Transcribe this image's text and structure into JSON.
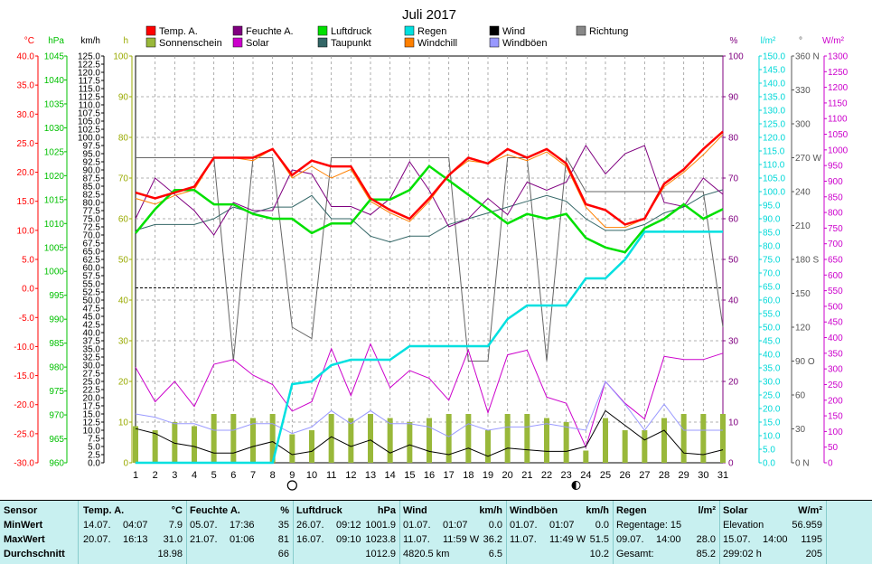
{
  "chart_data": {
    "type": "line",
    "title": "Juli 2017",
    "x": [
      1,
      2,
      3,
      4,
      5,
      6,
      7,
      8,
      9,
      10,
      11,
      12,
      13,
      14,
      15,
      16,
      17,
      18,
      19,
      20,
      21,
      22,
      23,
      24,
      25,
      26,
      27,
      28,
      29,
      30,
      31
    ],
    "x_ticks": [
      "1",
      "2",
      "3",
      "4",
      "5",
      "6",
      "7",
      "8",
      "9",
      "10",
      "11",
      "12",
      "13",
      "14",
      "15",
      "16",
      "17",
      "18",
      "19",
      "20",
      "21",
      "22",
      "23",
      "24",
      "25",
      "26",
      "27",
      "28",
      "29",
      "30",
      "31"
    ],
    "axes": {
      "temp": {
        "unit": "°C",
        "min": -30,
        "max": 40,
        "step": 5,
        "color": "#ff0000"
      },
      "hpa": {
        "unit": "hPa",
        "min": 960,
        "max": 1045,
        "step": 5,
        "color": "#00c000"
      },
      "kmh": {
        "unit": "km/h",
        "min": 0,
        "max": 125,
        "step": 2.5,
        "color": "#000000"
      },
      "hours": {
        "unit": "h",
        "min": 0,
        "max": 100,
        "step": 10,
        "color": "#99aa00"
      },
      "pct": {
        "unit": "%",
        "min": 0,
        "max": 100,
        "step": 10,
        "color": "#800080"
      },
      "rain": {
        "unit": "l/m²",
        "min": 0,
        "max": 150,
        "step": 5,
        "color": "#00d8d8"
      },
      "dir": {
        "unit": "°",
        "min": 0,
        "max": 360,
        "step": 30,
        "color": "#555555",
        "tick_labels": [
          "0 N",
          "30",
          "60",
          "90 O",
          "120",
          "150",
          "180 S",
          "210",
          "240",
          "270 W",
          "300",
          "330",
          "360 N"
        ]
      },
      "solar": {
        "unit": "W/m²",
        "min": 0,
        "max": 1300,
        "step": 50,
        "color": "#cc00cc"
      }
    },
    "series": [
      {
        "name": "Temp. A.",
        "axis": "temp",
        "color": "#ff0000",
        "width": 2.5,
        "values": [
          16.5,
          15.5,
          16.5,
          17.5,
          22.5,
          22.5,
          22.5,
          24,
          19.5,
          22,
          21,
          21,
          15.5,
          13.5,
          12,
          15.5,
          19.5,
          22.5,
          21.5,
          24,
          22.5,
          24,
          21.5,
          14.5,
          13.5,
          11,
          12,
          18,
          20.5,
          24,
          27
        ]
      },
      {
        "name": "Feuchte A.",
        "axis": "pct",
        "color": "#800080",
        "width": 1,
        "values": [
          60,
          70,
          66,
          62,
          56,
          64,
          62,
          62,
          72,
          71,
          63,
          63,
          61,
          65,
          74,
          67,
          58,
          60,
          65,
          61,
          69,
          67,
          69,
          78,
          71,
          76,
          78,
          64,
          63,
          70,
          66
        ]
      },
      {
        "name": "Luftdruck",
        "axis": "hpa",
        "color": "#00e000",
        "width": 2.5,
        "values": [
          1008,
          1013,
          1017,
          1017,
          1014,
          1014,
          1012,
          1011,
          1011,
          1008,
          1010,
          1010,
          1015,
          1015,
          1017,
          1022,
          1019,
          1016,
          1013,
          1010,
          1012,
          1011,
          1012,
          1007,
          1005,
          1004,
          1009,
          1011,
          1014,
          1011,
          1013
        ]
      },
      {
        "name": "Taupunkt",
        "axis": "temp",
        "color": "#336666",
        "width": 1,
        "values": [
          10,
          11,
          11,
          11,
          12,
          14,
          13,
          14,
          14,
          16,
          12,
          12,
          9,
          8,
          9,
          9,
          11,
          12,
          13,
          14,
          15,
          16,
          15,
          12,
          10,
          10,
          11,
          13,
          14,
          16,
          17
        ]
      },
      {
        "name": "Wind",
        "axis": "kmh",
        "color": "#000000",
        "width": 1,
        "values": [
          10.5,
          9,
          6,
          5,
          3,
          3,
          5,
          6.5,
          2.5,
          3.5,
          8,
          5,
          7,
          3,
          5.5,
          3.5,
          2.5,
          4.5,
          2,
          4.5,
          4,
          3.5,
          3.5,
          5,
          16,
          11.5,
          7,
          10,
          3,
          2.5,
          4
        ]
      },
      {
        "name": "Windböen",
        "axis": "kmh",
        "color": "#9999ff",
        "width": 1,
        "values": [
          15,
          14,
          12,
          12,
          10,
          10,
          12,
          12,
          9,
          11,
          16,
          12,
          16,
          12,
          12,
          11,
          8,
          12,
          10,
          11,
          11,
          12,
          11,
          10,
          25,
          18,
          10,
          18,
          10,
          10,
          10
        ]
      },
      {
        "name": "Windchill",
        "axis": "temp",
        "color": "#ff8000",
        "width": 1,
        "values": [
          15.5,
          14.5,
          16,
          17,
          22.5,
          22.5,
          22,
          24,
          19,
          21,
          19,
          20.5,
          15,
          13,
          11.5,
          15,
          19.5,
          22,
          21.5,
          23,
          22,
          23.5,
          21,
          14,
          10.5,
          10.5,
          12,
          17.5,
          20,
          23,
          26.5
        ]
      },
      {
        "name": "Solar",
        "axis": "solar",
        "color": "#cc00cc",
        "width": 1,
        "values": [
          305,
          195,
          260,
          180,
          315,
          330,
          280,
          250,
          165,
          195,
          365,
          215,
          380,
          240,
          295,
          270,
          200,
          360,
          160,
          345,
          360,
          210,
          190,
          50,
          260,
          190,
          140,
          340,
          330,
          330,
          350
        ]
      },
      {
        "name": "Regen",
        "axis": "rain",
        "color": "#00e0e0",
        "width": 2.5,
        "values": [
          0,
          0,
          0,
          0,
          0,
          0,
          0,
          0,
          29,
          30,
          36,
          38,
          38,
          38,
          43,
          43,
          43,
          43,
          43,
          53,
          58,
          58,
          58,
          68,
          68,
          75,
          85.2,
          85.2,
          85.2,
          85.2,
          85.2
        ]
      },
      {
        "name": "Richtung",
        "axis": "dir",
        "color": "#666666",
        "width": 1,
        "values": [
          270,
          270,
          270,
          270,
          270,
          90,
          270,
          270,
          120,
          110,
          270,
          270,
          270,
          270,
          270,
          270,
          270,
          90,
          90,
          270,
          270,
          90,
          270,
          240,
          240,
          240,
          240,
          240,
          240,
          240,
          120
        ]
      },
      {
        "name": "Sonnenschein",
        "axis": "hours",
        "color": "#99b83a",
        "type": "bar",
        "values": [
          9,
          8,
          10,
          9,
          12,
          12,
          11,
          12,
          7,
          8,
          12,
          11,
          12,
          11,
          10,
          11,
          12,
          12,
          8,
          12,
          12,
          11,
          10,
          3,
          11,
          8,
          8,
          11,
          12,
          12,
          12
        ]
      }
    ],
    "legend": [
      {
        "label": "Temp. A.",
        "color": "#ff0000"
      },
      {
        "label": "Feuchte A.",
        "color": "#800080"
      },
      {
        "label": "Luftdruck",
        "color": "#00e000"
      },
      {
        "label": "Regen",
        "color": "#00e0e0"
      },
      {
        "label": "Wind",
        "color": "#000000"
      },
      {
        "label": "Richtung",
        "color": "#888888"
      },
      {
        "label": "Sonnenschein",
        "color": "#99b83a"
      },
      {
        "label": "Solar",
        "color": "#cc00cc"
      },
      {
        "label": "Taupunkt",
        "color": "#336666"
      },
      {
        "label": "Windchill",
        "color": "#ff8000"
      },
      {
        "label": "Windböen",
        "color": "#9999ff"
      }
    ],
    "legend_placement": "top",
    "grid": true,
    "reference_line_pct": 43,
    "moon_full_day": 9,
    "moon_half_day": 23.5
  },
  "stats": {
    "sensor": {
      "header": "Sensor",
      "rows": [
        "MinWert",
        "MaxWert",
        "Durchschnitt"
      ]
    },
    "temp": {
      "header": "Temp. A.",
      "unit": "°C",
      "rows": [
        [
          "14.07.",
          "04:07",
          "7.9"
        ],
        [
          "20.07.",
          "16:13",
          "31.0"
        ],
        [
          "",
          "",
          "18.98"
        ]
      ]
    },
    "feuchte": {
      "header": "Feuchte A.",
      "unit": "%",
      "rows": [
        [
          "05.07.",
          "17:36",
          "35"
        ],
        [
          "21.07.",
          "01:06",
          "81"
        ],
        [
          "",
          "",
          "66"
        ]
      ]
    },
    "luftdruck": {
      "header": "Luftdruck",
      "unit": "hPa",
      "rows": [
        [
          "26.07.",
          "09:12",
          "1001.9"
        ],
        [
          "16.07.",
          "09:10",
          "1023.8"
        ],
        [
          "",
          "",
          "1012.9"
        ]
      ]
    },
    "wind": {
      "header": "Wind",
      "unit": "km/h",
      "rows": [
        [
          "01.07.",
          "01:07",
          "0.0"
        ],
        [
          "11.07.",
          "11:59 W",
          "36.2"
        ],
        [
          "4820.5 km",
          "",
          "6.5"
        ]
      ]
    },
    "windboeen": {
      "header": "Windböen",
      "unit": "km/h",
      "rows": [
        [
          "01.07.",
          "01:07",
          "0.0"
        ],
        [
          "11.07.",
          "11:49 W",
          "51.5"
        ],
        [
          "",
          "",
          "10.2"
        ]
      ]
    },
    "regen": {
      "header": "Regen",
      "unit": "l/m²",
      "rows": [
        [
          "Regentage: 15",
          "",
          ""
        ],
        [
          "09.07.",
          "14:00",
          "28.0"
        ],
        [
          "Gesamt:",
          "",
          "85.2"
        ]
      ]
    },
    "solar": {
      "header": "Solar",
      "unit": "W/m²",
      "rows": [
        [
          "Elevation",
          "",
          "56.959"
        ],
        [
          "15.07.",
          "14:00",
          "1195"
        ],
        [
          "299:02 h",
          "",
          "205"
        ]
      ]
    }
  }
}
